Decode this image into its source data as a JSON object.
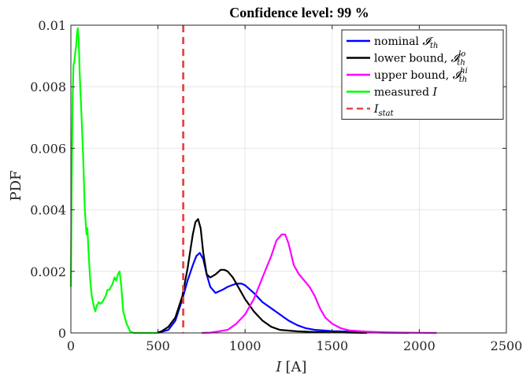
{
  "chart_data": {
    "type": "line",
    "title": "Confidence level: 99 %",
    "xlabel_var": "I",
    "xlabel_unit": "[A]",
    "ylabel": "PDF",
    "xlim": [
      0,
      2500
    ],
    "ylim": [
      0,
      0.01
    ],
    "xticks": [
      "0",
      "500",
      "1000",
      "1500",
      "2000",
      "2500"
    ],
    "yticks": [
      "0",
      "0.002",
      "0.004",
      "0.006",
      "0.008",
      "0.01"
    ],
    "grid": true,
    "legend_position": "top-right",
    "series": [
      {
        "name": "nominal",
        "legend_prefix": "nominal ",
        "legend_math": "𝓘",
        "legend_sub": "th",
        "legend_sup": "",
        "color": "#0000ff",
        "x": [
          500,
          560,
          600,
          640,
          670,
          700,
          720,
          740,
          760,
          780,
          800,
          830,
          870,
          900,
          950,
          980,
          1000,
          1050,
          1100,
          1150,
          1200,
          1250,
          1300,
          1350,
          1400,
          1450,
          1500,
          1600,
          1700,
          1800,
          1900,
          1940
        ],
        "y": [
          0,
          0.0001,
          0.0004,
          0.0011,
          0.0017,
          0.0022,
          0.0025,
          0.0026,
          0.0024,
          0.0019,
          0.0015,
          0.0013,
          0.0014,
          0.0015,
          0.0016,
          0.0016,
          0.00155,
          0.0013,
          0.001,
          0.0008,
          0.0006,
          0.0004,
          0.00025,
          0.00015,
          0.0001,
          8e-05,
          6e-05,
          4e-05,
          2e-05,
          1e-05,
          5e-06,
          0
        ]
      },
      {
        "name": "lower bound",
        "legend_prefix": "lower bound, ",
        "legend_math": "𝓘",
        "legend_sub": "th",
        "legend_sup": "lo",
        "color": "#000000",
        "x": [
          490,
          520,
          560,
          600,
          640,
          670,
          700,
          715,
          730,
          745,
          760,
          780,
          800,
          830,
          860,
          880,
          900,
          930,
          960,
          1000,
          1050,
          1100,
          1150,
          1200,
          1300,
          1400,
          1500,
          1600,
          1700
        ],
        "y": [
          0,
          5e-05,
          0.0002,
          0.0005,
          0.0012,
          0.0021,
          0.0032,
          0.0036,
          0.0037,
          0.0034,
          0.0026,
          0.0019,
          0.0018,
          0.0019,
          0.00205,
          0.00205,
          0.002,
          0.0018,
          0.0015,
          0.0011,
          0.0007,
          0.0004,
          0.0002,
          0.0001,
          5e-05,
          3e-05,
          2e-05,
          1e-05,
          0
        ]
      },
      {
        "name": "upper bound",
        "legend_prefix": "upper bound, ",
        "legend_math": "𝓘",
        "legend_sub": "th",
        "legend_sup": "hi",
        "color": "#ff00ff",
        "x": [
          750,
          800,
          850,
          900,
          950,
          1000,
          1050,
          1100,
          1150,
          1180,
          1210,
          1230,
          1250,
          1280,
          1310,
          1340,
          1370,
          1400,
          1430,
          1460,
          1500,
          1550,
          1600,
          1700,
          1800,
          1900,
          2000,
          2100
        ],
        "y": [
          0,
          1e-05,
          5e-05,
          0.0001,
          0.0003,
          0.0006,
          0.0011,
          0.0018,
          0.0025,
          0.003,
          0.0032,
          0.0032,
          0.0029,
          0.0022,
          0.0019,
          0.0017,
          0.0015,
          0.0012,
          0.0008,
          0.0005,
          0.0003,
          0.00015,
          8e-05,
          4e-05,
          2e-05,
          1e-05,
          5e-06,
          0
        ]
      },
      {
        "name": "measured I",
        "legend_prefix": "measured ",
        "legend_math": "I",
        "legend_sub": "",
        "legend_sup": "",
        "color": "#00ff00",
        "x": [
          0,
          5,
          10,
          15,
          20,
          25,
          30,
          35,
          40,
          45,
          50,
          55,
          60,
          65,
          70,
          80,
          90,
          95,
          100,
          110,
          120,
          130,
          140,
          150,
          160,
          170,
          180,
          190,
          200,
          210,
          220,
          230,
          240,
          250,
          260,
          270,
          280,
          290,
          300,
          320,
          340,
          360,
          380,
          400,
          450,
          500
        ],
        "y": [
          0.0015,
          0.005,
          0.0075,
          0.0087,
          0.0088,
          0.0091,
          0.0093,
          0.0097,
          0.0099,
          0.0095,
          0.0085,
          0.0078,
          0.0072,
          0.0065,
          0.0058,
          0.004,
          0.0032,
          0.0034,
          0.0028,
          0.0018,
          0.0012,
          0.0009,
          0.0007,
          0.0009,
          0.001,
          0.00095,
          0.001,
          0.0011,
          0.0012,
          0.0014,
          0.0014,
          0.0015,
          0.0016,
          0.0018,
          0.0017,
          0.0019,
          0.002,
          0.0015,
          0.0007,
          0.0003,
          5e-05,
          0,
          0,
          0,
          0,
          0
        ]
      }
    ],
    "vline": {
      "name": "I_stat",
      "legend_math": "I",
      "legend_sub": "stat",
      "x": 645,
      "color": "#e84545",
      "dash": true
    }
  }
}
